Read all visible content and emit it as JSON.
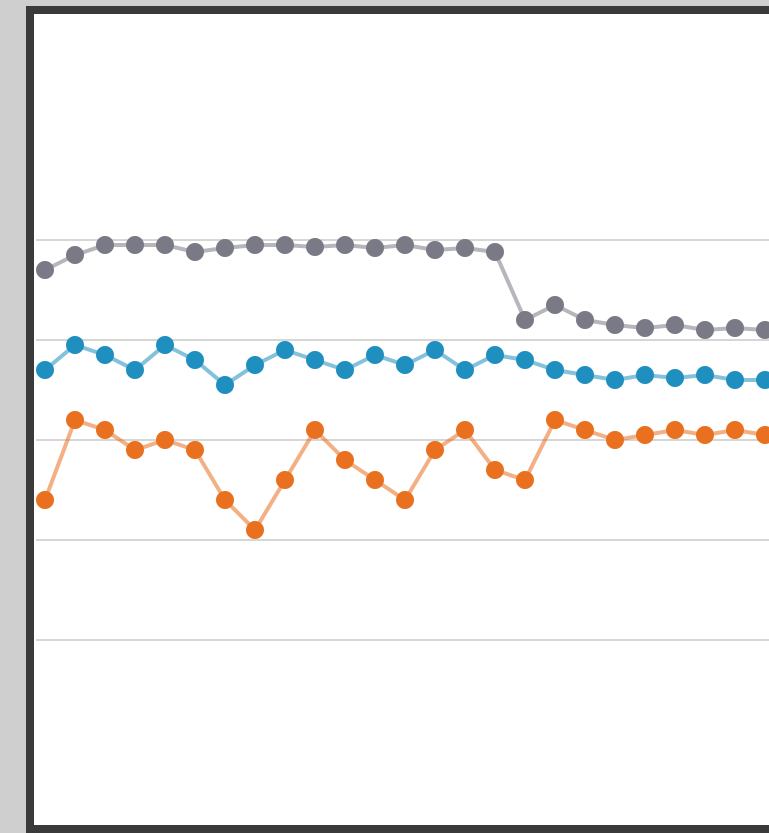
{
  "chart_data": {
    "type": "line",
    "x": [
      0,
      1,
      2,
      3,
      4,
      5,
      6,
      7,
      8,
      9,
      10,
      11,
      12,
      13,
      14,
      15,
      16,
      17,
      18,
      19,
      20,
      21,
      22,
      23,
      24
    ],
    "xlim": [
      -0.5,
      24.5
    ],
    "ylim": [
      0,
      6
    ],
    "yticks": [
      1,
      2,
      3,
      4,
      5
    ],
    "grid": true,
    "series": [
      {
        "color": "#7a7a86",
        "values": [
          4.7,
          4.85,
          4.95,
          4.95,
          4.95,
          4.88,
          4.92,
          4.95,
          4.95,
          4.93,
          4.95,
          4.92,
          4.95,
          4.9,
          4.92,
          4.88,
          4.2,
          4.35,
          4.2,
          4.15,
          4.12,
          4.15,
          4.1,
          4.12,
          4.1
        ]
      },
      {
        "color": "#1f8fc0",
        "values": [
          3.7,
          3.95,
          3.85,
          3.7,
          3.95,
          3.8,
          3.55,
          3.75,
          3.9,
          3.8,
          3.7,
          3.85,
          3.75,
          3.9,
          3.7,
          3.85,
          3.8,
          3.7,
          3.65,
          3.6,
          3.65,
          3.62,
          3.65,
          3.6,
          3.6
        ]
      },
      {
        "color": "#e8701f",
        "values": [
          2.4,
          3.2,
          3.1,
          2.9,
          3.0,
          2.9,
          2.4,
          2.1,
          2.6,
          3.1,
          2.8,
          2.6,
          2.4,
          2.9,
          3.1,
          2.7,
          2.6,
          3.2,
          3.1,
          3.0,
          3.05,
          3.1,
          3.05,
          3.1,
          3.05
        ]
      }
    ]
  }
}
